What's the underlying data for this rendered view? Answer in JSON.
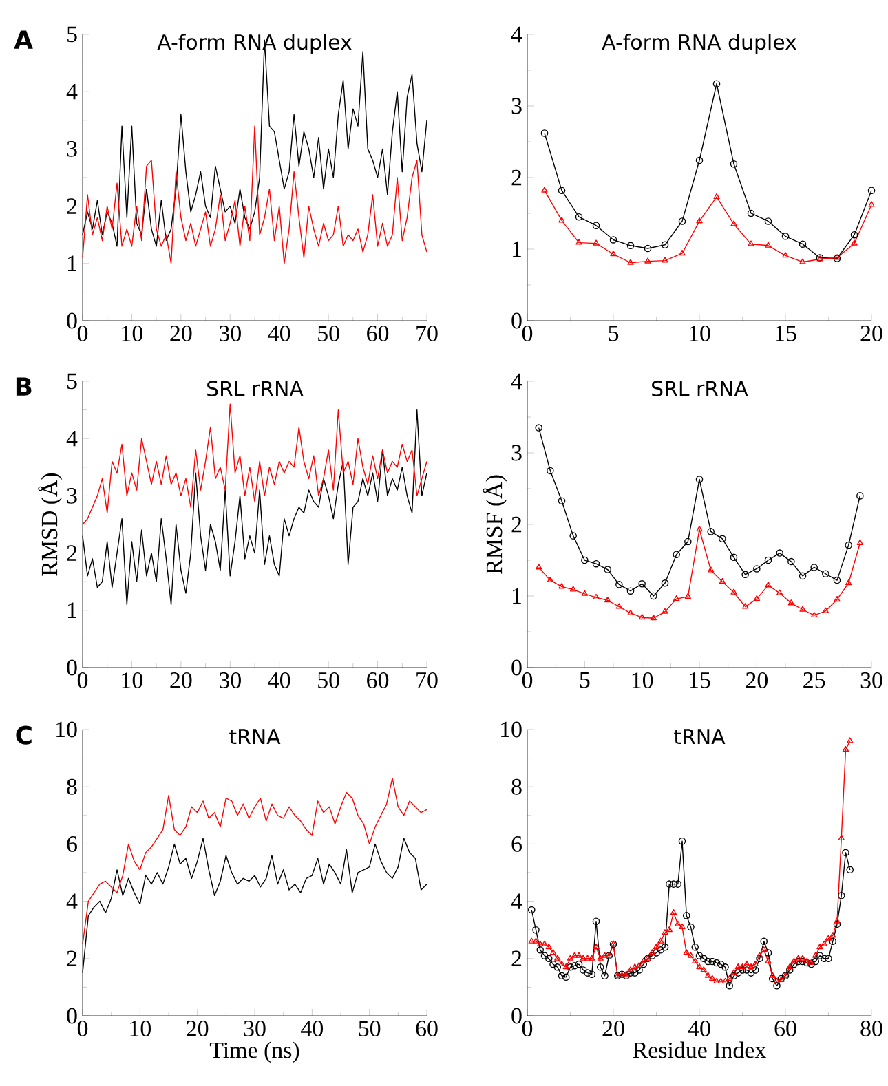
{
  "chart_data": [
    {
      "type": "line",
      "title": "A-form RNA duplex",
      "annotations": [
        "A"
      ],
      "xlim": [
        0,
        70
      ],
      "ylim": [
        0,
        5
      ],
      "xticks": [
        0,
        10,
        20,
        30,
        40,
        50,
        60,
        70
      ],
      "yticks": [
        0,
        1,
        2,
        3,
        4,
        5
      ],
      "x": [
        0,
        1,
        2,
        3,
        4,
        5,
        6,
        7,
        8,
        9,
        10,
        11,
        12,
        13,
        14,
        15,
        16,
        17,
        18,
        19,
        20,
        21,
        22,
        23,
        24,
        25,
        26,
        27,
        28,
        29,
        30,
        31,
        32,
        33,
        34,
        35,
        36,
        37,
        38,
        39,
        40,
        41,
        42,
        43,
        44,
        45,
        46,
        47,
        48,
        49,
        50,
        51,
        52,
        53,
        54,
        55,
        56,
        57,
        58,
        59,
        60,
        61,
        62,
        63,
        64,
        65,
        66,
        67,
        68,
        69,
        70
      ],
      "series": [
        {
          "color": "#000000",
          "values": [
            1.5,
            1.9,
            1.6,
            2.1,
            1.5,
            1.9,
            1.7,
            1.3,
            3.4,
            1.8,
            3.4,
            1.7,
            1.5,
            2.3,
            1.6,
            1.3,
            2.1,
            1.4,
            1.6,
            2.3,
            3.6,
            2.6,
            1.9,
            2.2,
            2.6,
            2.0,
            1.8,
            2.7,
            2.3,
            1.9,
            2.0,
            1.7,
            2.3,
            1.8,
            1.6,
            1.9,
            2.5,
            4.9,
            3.4,
            3.3,
            2.8,
            2.3,
            2.6,
            3.6,
            2.7,
            3.3,
            3.0,
            2.5,
            3.2,
            2.3,
            3.0,
            2.5,
            3.6,
            4.2,
            3.0,
            3.7,
            3.4,
            4.7,
            3.0,
            2.8,
            2.5,
            3.0,
            2.2,
            3.3,
            4.0,
            2.6,
            3.9,
            4.3,
            3.1,
            2.6,
            3.5
          ]
        },
        {
          "color": "#ff0000",
          "values": [
            1.1,
            2.2,
            1.5,
            1.8,
            1.4,
            2.0,
            1.6,
            2.4,
            1.3,
            1.6,
            1.3,
            2.0,
            1.4,
            2.7,
            2.8,
            1.6,
            1.3,
            1.5,
            1.0,
            2.6,
            1.8,
            1.4,
            1.7,
            1.3,
            1.6,
            1.9,
            1.3,
            1.6,
            2.2,
            1.4,
            1.7,
            2.1,
            1.3,
            2.0,
            1.4,
            3.4,
            1.5,
            1.8,
            2.3,
            1.4,
            2.0,
            1.0,
            1.6,
            2.6,
            1.8,
            1.1,
            2.0,
            1.6,
            1.3,
            1.7,
            1.4,
            1.5,
            2.0,
            1.3,
            1.5,
            1.4,
            1.6,
            1.2,
            1.5,
            2.2,
            1.3,
            1.7,
            1.3,
            1.5,
            2.5,
            1.4,
            1.8,
            2.5,
            2.8,
            1.5,
            1.2
          ]
        }
      ]
    },
    {
      "type": "line",
      "title": "A-form RNA duplex",
      "xlim": [
        0,
        20
      ],
      "ylim": [
        0,
        4
      ],
      "xticks": [
        0,
        5,
        10,
        15,
        20
      ],
      "yticks": [
        0,
        1,
        2,
        3,
        4
      ],
      "x": [
        1,
        2,
        3,
        4,
        5,
        6,
        7,
        8,
        9,
        10,
        11,
        12,
        13,
        14,
        15,
        16,
        17,
        18,
        19,
        20
      ],
      "series": [
        {
          "color": "#000000",
          "marker": "circle",
          "values": [
            2.62,
            1.82,
            1.45,
            1.33,
            1.13,
            1.05,
            1.01,
            1.06,
            1.39,
            2.24,
            3.31,
            2.19,
            1.5,
            1.39,
            1.18,
            1.07,
            0.88,
            0.87,
            1.2,
            1.82
          ]
        },
        {
          "color": "#ff0000",
          "marker": "triangle",
          "values": [
            1.82,
            1.4,
            1.09,
            1.08,
            0.93,
            0.81,
            0.83,
            0.84,
            0.94,
            1.39,
            1.73,
            1.35,
            1.07,
            1.05,
            0.91,
            0.82,
            0.86,
            0.88,
            1.08,
            1.62
          ]
        }
      ]
    },
    {
      "type": "line",
      "title": "SRL rRNA",
      "ylabel": "RMSD (Å)",
      "annotations": [
        "B"
      ],
      "xlim": [
        0,
        70
      ],
      "ylim": [
        0,
        5
      ],
      "xticks": [
        0,
        10,
        20,
        30,
        40,
        50,
        60,
        70
      ],
      "yticks": [
        0,
        1,
        2,
        3,
        4,
        5
      ],
      "x": [
        0,
        1,
        2,
        3,
        4,
        5,
        6,
        7,
        8,
        9,
        10,
        11,
        12,
        13,
        14,
        15,
        16,
        17,
        18,
        19,
        20,
        21,
        22,
        23,
        24,
        25,
        26,
        27,
        28,
        29,
        30,
        31,
        32,
        33,
        34,
        35,
        36,
        37,
        38,
        39,
        40,
        41,
        42,
        43,
        44,
        45,
        46,
        47,
        48,
        49,
        50,
        51,
        52,
        53,
        54,
        55,
        56,
        57,
        58,
        59,
        60,
        61,
        62,
        63,
        64,
        65,
        66,
        67,
        68,
        69,
        70
      ],
      "series": [
        {
          "color": "#000000",
          "values": [
            2.3,
            1.6,
            1.9,
            1.4,
            1.5,
            2.2,
            1.4,
            2.0,
            2.6,
            1.1,
            2.2,
            1.5,
            2.4,
            1.6,
            2.0,
            1.5,
            2.6,
            1.9,
            1.1,
            2.5,
            1.7,
            1.3,
            2.0,
            3.4,
            2.3,
            1.7,
            2.5,
            2.2,
            1.7,
            3.1,
            1.6,
            2.2,
            3.0,
            1.9,
            2.3,
            2.0,
            3.1,
            1.8,
            2.3,
            1.8,
            1.6,
            2.6,
            2.3,
            2.6,
            2.8,
            2.7,
            3.1,
            2.9,
            2.8,
            3.3,
            3.0,
            2.6,
            3.2,
            3.6,
            1.8,
            2.8,
            2.9,
            3.3,
            3.0,
            3.4,
            2.9,
            3.8,
            3.0,
            3.3,
            3.1,
            3.5,
            3.0,
            2.7,
            4.5,
            3.0,
            3.4
          ]
        },
        {
          "color": "#ff0000",
          "values": [
            2.5,
            2.6,
            2.8,
            3.0,
            3.3,
            2.7,
            3.6,
            3.4,
            3.9,
            3.0,
            3.4,
            3.1,
            4.0,
            3.6,
            3.2,
            3.6,
            3.2,
            3.7,
            3.2,
            3.4,
            3.0,
            3.3,
            2.8,
            3.8,
            3.1,
            3.6,
            4.2,
            3.3,
            3.5,
            3.1,
            4.6,
            3.4,
            3.7,
            3.0,
            3.5,
            2.9,
            3.6,
            3.0,
            3.5,
            3.2,
            3.6,
            3.4,
            3.6,
            3.5,
            4.2,
            3.6,
            3.3,
            3.7,
            3.0,
            3.3,
            3.8,
            3.1,
            4.5,
            3.4,
            3.6,
            3.2,
            4.0,
            3.5,
            3.2,
            3.7,
            3.3,
            3.8,
            3.4,
            3.6,
            3.5,
            3.9,
            3.6,
            3.8,
            3.0,
            3.3,
            3.6
          ]
        }
      ]
    },
    {
      "type": "line",
      "title": "SRL rRNA",
      "ylabel": "RMSF (Å)",
      "xlim": [
        0,
        30
      ],
      "ylim": [
        0,
        4
      ],
      "xticks": [
        0,
        5,
        10,
        15,
        20,
        25,
        30
      ],
      "yticks": [
        0,
        1,
        2,
        3,
        4
      ],
      "x": [
        1,
        2,
        3,
        4,
        5,
        6,
        7,
        8,
        9,
        10,
        11,
        12,
        13,
        14,
        15,
        16,
        17,
        18,
        19,
        20,
        21,
        22,
        23,
        24,
        25,
        26,
        27,
        28,
        29
      ],
      "series": [
        {
          "color": "#000000",
          "marker": "circle",
          "values": [
            3.35,
            2.75,
            2.33,
            1.84,
            1.5,
            1.45,
            1.37,
            1.16,
            1.07,
            1.17,
            1.0,
            1.18,
            1.58,
            1.76,
            2.63,
            1.9,
            1.8,
            1.54,
            1.3,
            1.38,
            1.5,
            1.6,
            1.48,
            1.28,
            1.4,
            1.31,
            1.22,
            1.71,
            2.4
          ]
        },
        {
          "color": "#ff0000",
          "marker": "triangle",
          "values": [
            1.4,
            1.22,
            1.13,
            1.09,
            1.03,
            0.98,
            0.94,
            0.85,
            0.76,
            0.7,
            0.69,
            0.78,
            0.96,
            0.99,
            1.93,
            1.36,
            1.2,
            1.05,
            0.85,
            0.96,
            1.15,
            1.04,
            0.9,
            0.81,
            0.73,
            0.79,
            0.95,
            1.18,
            1.74
          ]
        }
      ]
    },
    {
      "type": "line",
      "title": "tRNA",
      "xlabel": "Time (ns)",
      "annotations": [
        "C"
      ],
      "xlim": [
        0,
        60
      ],
      "ylim": [
        0,
        10
      ],
      "xticks": [
        0,
        10,
        20,
        30,
        40,
        50,
        60
      ],
      "yticks": [
        0,
        2,
        4,
        6,
        8,
        10
      ],
      "x": [
        0,
        1,
        2,
        3,
        4,
        5,
        6,
        7,
        8,
        9,
        10,
        11,
        12,
        13,
        14,
        15,
        16,
        17,
        18,
        19,
        20,
        21,
        22,
        23,
        24,
        25,
        26,
        27,
        28,
        29,
        30,
        31,
        32,
        33,
        34,
        35,
        36,
        37,
        38,
        39,
        40,
        41,
        42,
        43,
        44,
        45,
        46,
        47,
        48,
        49,
        50,
        51,
        52,
        53,
        54,
        55,
        56,
        57,
        58,
        59,
        60
      ],
      "series": [
        {
          "color": "#000000",
          "values": [
            1.5,
            3.5,
            3.8,
            4.0,
            3.6,
            4.1,
            5.1,
            4.2,
            4.8,
            4.3,
            3.9,
            4.9,
            4.6,
            5.0,
            4.6,
            5.2,
            6.0,
            5.3,
            5.5,
            4.8,
            5.4,
            6.2,
            5.1,
            4.2,
            4.7,
            5.6,
            5.0,
            4.6,
            4.8,
            4.7,
            4.9,
            4.5,
            4.8,
            5.6,
            4.6,
            5.1,
            4.4,
            4.6,
            4.3,
            4.8,
            4.9,
            5.5,
            4.6,
            5.3,
            5.0,
            4.6,
            5.8,
            4.3,
            5.0,
            5.1,
            5.2,
            6.0,
            5.4,
            5.0,
            4.8,
            5.2,
            6.2,
            5.7,
            5.5,
            4.4,
            4.6
          ]
        },
        {
          "color": "#ff0000",
          "values": [
            2.5,
            4.0,
            4.3,
            4.6,
            4.7,
            4.5,
            4.3,
            4.9,
            6.0,
            5.4,
            5.1,
            5.7,
            5.9,
            6.2,
            6.5,
            7.7,
            6.5,
            6.3,
            6.6,
            7.3,
            7.1,
            7.5,
            6.9,
            7.1,
            6.6,
            7.6,
            7.5,
            7.0,
            7.4,
            6.9,
            7.3,
            7.6,
            6.8,
            7.4,
            7.0,
            6.9,
            7.3,
            7.0,
            6.8,
            6.5,
            6.3,
            7.5,
            7.1,
            7.3,
            6.7,
            7.3,
            7.8,
            7.6,
            7.0,
            6.7,
            6.0,
            6.6,
            7.0,
            7.4,
            8.3,
            7.3,
            7.0,
            7.5,
            7.3,
            7.1,
            7.2
          ]
        }
      ]
    },
    {
      "type": "line",
      "title": "tRNA",
      "xlabel": "Residue Index",
      "xlim": [
        0,
        80
      ],
      "ylim": [
        0,
        10
      ],
      "xticks": [
        0,
        20,
        40,
        60,
        80
      ],
      "yticks": [
        0,
        2,
        4,
        6,
        8,
        10
      ],
      "x": [
        1,
        2,
        3,
        4,
        5,
        6,
        7,
        8,
        9,
        10,
        11,
        12,
        13,
        14,
        15,
        16,
        17,
        18,
        19,
        20,
        21,
        22,
        23,
        24,
        25,
        26,
        27,
        28,
        29,
        30,
        31,
        32,
        33,
        34,
        35,
        36,
        37,
        38,
        39,
        40,
        41,
        42,
        43,
        44,
        45,
        46,
        47,
        48,
        49,
        50,
        51,
        52,
        53,
        54,
        55,
        56,
        57,
        58,
        59,
        60,
        61,
        62,
        63,
        64,
        65,
        66,
        67,
        68,
        69,
        70,
        71,
        72,
        73,
        74,
        75
      ],
      "series": [
        {
          "color": "#000000",
          "marker": "circle",
          "values": [
            3.7,
            3.0,
            2.3,
            2.1,
            2.0,
            1.8,
            1.7,
            1.4,
            1.35,
            1.7,
            1.75,
            1.8,
            1.6,
            1.5,
            1.45,
            3.3,
            1.7,
            1.4,
            2.1,
            2.5,
            1.4,
            1.45,
            1.4,
            1.5,
            1.5,
            1.6,
            1.8,
            2.0,
            2.1,
            2.2,
            2.3,
            2.4,
            4.6,
            4.6,
            4.6,
            6.1,
            3.5,
            3.1,
            2.4,
            2.1,
            2.0,
            1.9,
            1.9,
            1.85,
            1.8,
            1.7,
            1.05,
            1.4,
            1.5,
            1.6,
            1.6,
            1.5,
            1.6,
            2.0,
            2.6,
            2.2,
            1.3,
            1.05,
            1.3,
            1.4,
            1.6,
            1.8,
            1.9,
            1.9,
            1.85,
            1.8,
            1.9,
            2.1,
            2.0,
            2.0,
            2.6,
            3.2,
            4.2,
            5.7,
            5.1
          ]
        },
        {
          "color": "#ff0000",
          "marker": "triangle",
          "values": [
            2.6,
            2.6,
            2.5,
            2.5,
            2.4,
            2.2,
            2.0,
            1.8,
            1.7,
            2.0,
            2.1,
            2.1,
            2.0,
            2.0,
            2.0,
            2.4,
            2.0,
            2.1,
            2.1,
            2.5,
            1.4,
            1.4,
            1.45,
            1.6,
            1.7,
            1.75,
            1.9,
            2.0,
            2.2,
            2.4,
            2.6,
            2.9,
            3.0,
            3.6,
            3.2,
            3.1,
            2.2,
            2.1,
            1.9,
            1.7,
            1.6,
            1.4,
            1.3,
            1.2,
            1.2,
            1.2,
            1.3,
            1.5,
            1.7,
            1.7,
            1.8,
            1.7,
            1.8,
            2.1,
            2.3,
            1.9,
            1.4,
            1.2,
            1.25,
            1.4,
            1.7,
            1.9,
            2.0,
            2.0,
            1.9,
            1.85,
            2.1,
            2.4,
            2.5,
            2.7,
            2.8,
            3.3,
            6.2,
            9.3,
            9.6
          ]
        }
      ]
    }
  ]
}
